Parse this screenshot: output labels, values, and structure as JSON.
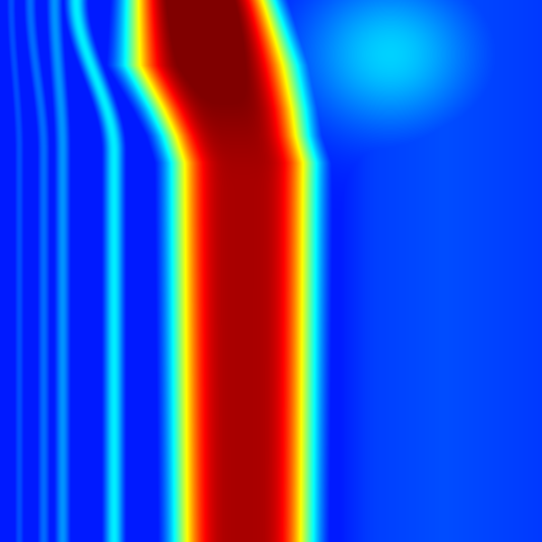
{
  "chart_data": {
    "type": "heatmap",
    "colormap": "jet",
    "title": "",
    "xlabel": "",
    "ylabel": "",
    "axes_visible": false,
    "colorbar_visible": false,
    "grid": false,
    "value_range": [
      0,
      1
    ],
    "x_range": [
      0,
      1
    ],
    "y_range": [
      0,
      1
    ],
    "y_direction": "downward",
    "features": [
      {
        "kind": "main_band",
        "intensity_top": 0.97,
        "intensity_lower": 0.88,
        "center_by_y": [
          [
            0.0,
            0.37
          ],
          [
            0.12,
            0.39
          ],
          [
            0.2,
            0.42
          ],
          [
            0.3,
            0.45
          ],
          [
            1.0,
            0.45
          ]
        ],
        "halfwidth_by_y": [
          [
            0.0,
            0.12
          ],
          [
            0.12,
            0.14
          ],
          [
            0.25,
            0.12
          ],
          [
            1.0,
            0.115
          ]
        ]
      },
      {
        "kind": "hot_spot",
        "cx": 0.39,
        "cy": 0.13,
        "intensity": 1.0,
        "rx": 0.1,
        "ry": 0.08
      },
      {
        "kind": "faint_glow",
        "cx": 0.72,
        "cy": 0.1,
        "intensity": 0.33,
        "rx": 0.16,
        "ry": 0.14
      },
      {
        "kind": "ripple",
        "x_top": 0.14,
        "x_bottom": 0.21,
        "intensity": 0.36,
        "halfwidth": 0.018
      },
      {
        "kind": "ripple",
        "x_top": 0.1,
        "x_bottom": 0.115,
        "intensity": 0.27,
        "halfwidth": 0.014
      },
      {
        "kind": "ripple",
        "x_top": 0.055,
        "x_bottom": 0.08,
        "intensity": 0.23,
        "halfwidth": 0.012
      },
      {
        "kind": "ripple",
        "x_top": 0.02,
        "x_bottom": 0.035,
        "intensity": 0.2,
        "halfwidth": 0.01
      },
      {
        "kind": "right_background",
        "intensity": 0.2
      }
    ]
  }
}
